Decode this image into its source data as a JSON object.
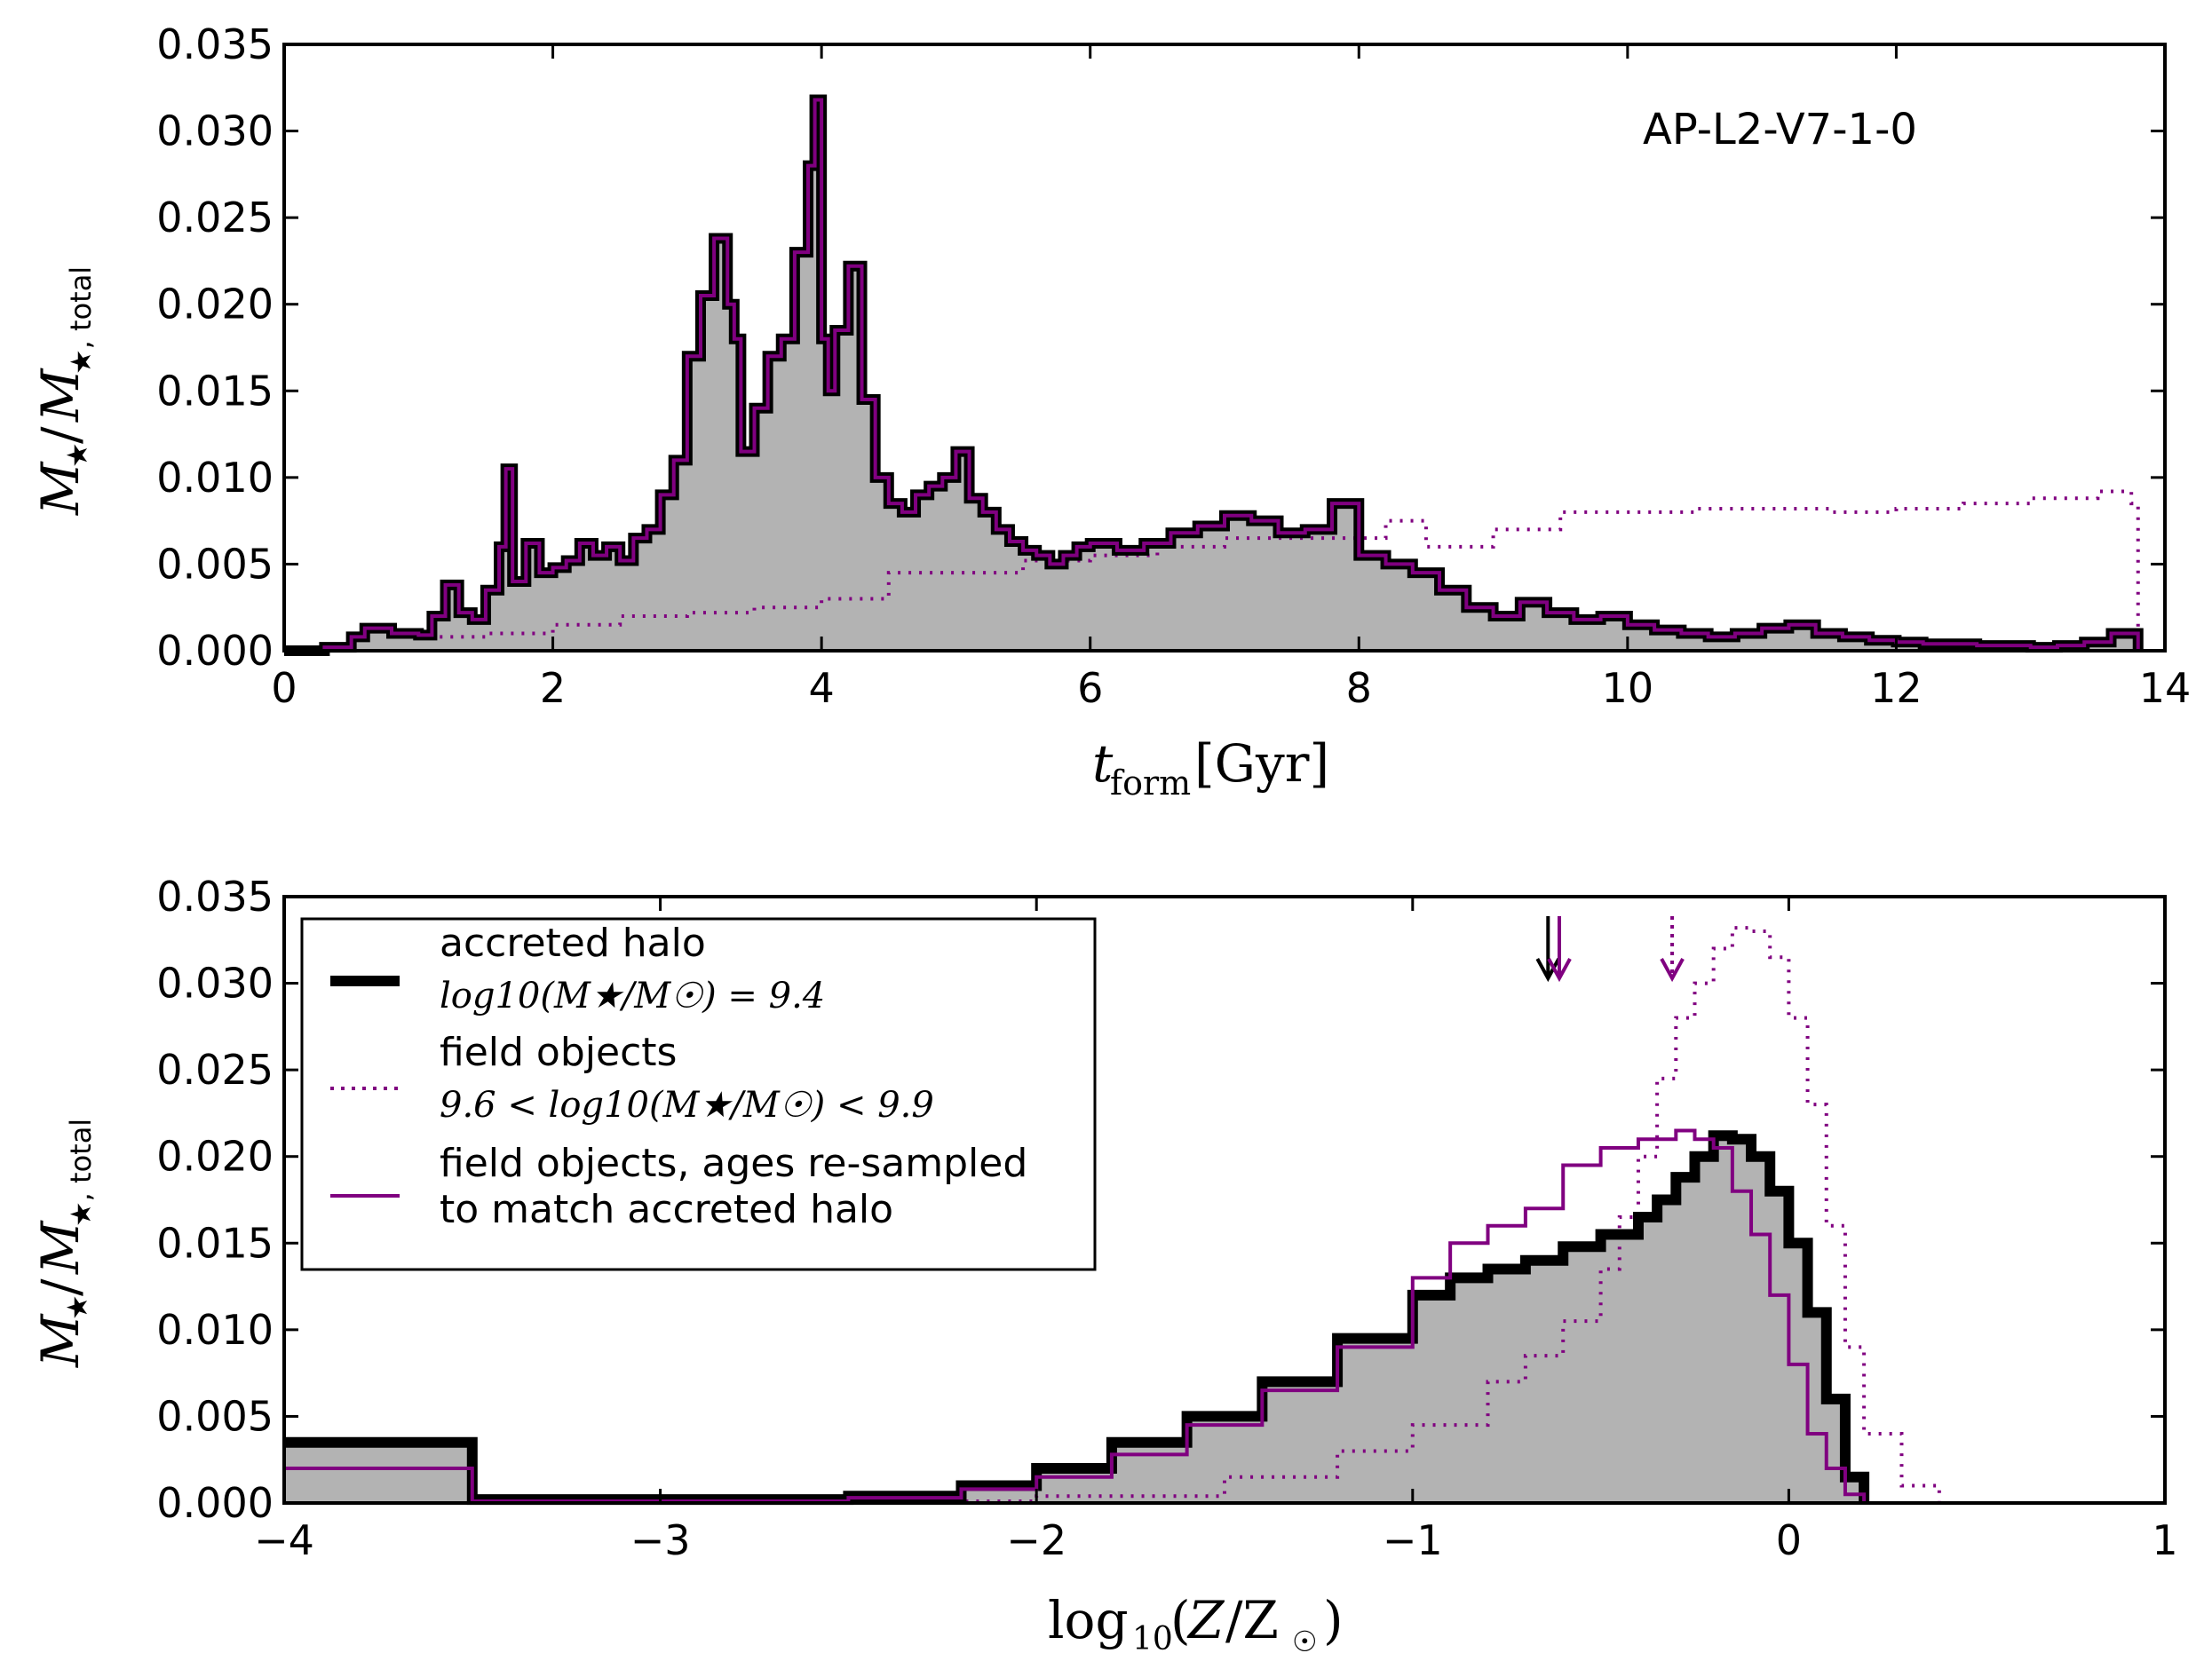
{
  "colors": {
    "accreted": "#000000",
    "field": "#800080",
    "fill": "#b3b3b3"
  },
  "chart_data": [
    {
      "type": "histogram",
      "panel": "top",
      "annotation": "AP-L2-V7-1-0",
      "xlabel": "t_form [Gyr]",
      "ylabel": "M★/M★,total",
      "xlim": [
        0,
        14
      ],
      "ylim": [
        0,
        0.035
      ],
      "xticks": [
        0,
        2,
        4,
        6,
        8,
        10,
        12,
        14
      ],
      "yticks": [
        0.0,
        0.005,
        0.01,
        0.015,
        0.02,
        0.025,
        0.03,
        0.035
      ],
      "ytick_labels": [
        "0.000",
        "0.005",
        "0.010",
        "0.015",
        "0.020",
        "0.025",
        "0.030",
        "0.035"
      ],
      "accreted_halo": {
        "x": [
          0.0,
          0.3,
          0.5,
          0.6,
          0.8,
          1.0,
          1.1,
          1.2,
          1.3,
          1.4,
          1.5,
          1.6,
          1.65,
          1.7,
          1.8,
          1.9,
          2.0,
          2.1,
          2.2,
          2.3,
          2.4,
          2.5,
          2.6,
          2.7,
          2.8,
          2.9,
          3.0,
          3.1,
          3.2,
          3.3,
          3.35,
          3.4,
          3.5,
          3.6,
          3.7,
          3.8,
          3.9,
          3.95,
          4.0,
          4.05,
          4.1,
          4.2,
          4.3,
          4.4,
          4.5,
          4.6,
          4.7,
          4.8,
          4.9,
          5.0,
          5.1,
          5.2,
          5.3,
          5.4,
          5.5,
          5.6,
          5.7,
          5.8,
          5.9,
          6.0,
          6.2,
          6.4,
          6.6,
          6.8,
          7.0,
          7.2,
          7.4,
          7.6,
          7.8,
          8.0,
          8.2,
          8.4,
          8.6,
          8.8,
          9.0,
          9.2,
          9.4,
          9.6,
          9.8,
          10.0,
          10.2,
          10.4,
          10.6,
          10.8,
          11.0,
          11.2,
          11.4,
          11.6,
          11.8,
          12.0,
          12.2,
          12.4,
          12.6,
          12.8,
          13.0,
          13.2,
          13.4,
          13.6,
          13.8
        ],
        "y": [
          0.0,
          0.0002,
          0.0008,
          0.0013,
          0.001,
          0.0009,
          0.002,
          0.0038,
          0.0022,
          0.0018,
          0.0035,
          0.006,
          0.0105,
          0.004,
          0.0062,
          0.0045,
          0.0048,
          0.0052,
          0.0062,
          0.0055,
          0.006,
          0.0052,
          0.0065,
          0.007,
          0.009,
          0.011,
          0.017,
          0.0205,
          0.0238,
          0.02,
          0.018,
          0.0115,
          0.014,
          0.017,
          0.018,
          0.023,
          0.028,
          0.0318,
          0.018,
          0.015,
          0.0185,
          0.0222,
          0.0145,
          0.01,
          0.0085,
          0.008,
          0.009,
          0.0095,
          0.01,
          0.0115,
          0.0088,
          0.008,
          0.007,
          0.0063,
          0.0058,
          0.0055,
          0.005,
          0.0055,
          0.006,
          0.0062,
          0.0058,
          0.0062,
          0.0068,
          0.0072,
          0.0078,
          0.0075,
          0.0068,
          0.007,
          0.0085,
          0.0055,
          0.005,
          0.0045,
          0.0035,
          0.0025,
          0.002,
          0.0028,
          0.0022,
          0.0018,
          0.002,
          0.0015,
          0.0012,
          0.001,
          0.0008,
          0.001,
          0.0013,
          0.0015,
          0.001,
          0.0008,
          0.0006,
          0.0005,
          0.0004,
          0.0004,
          0.0003,
          0.0003,
          0.0002,
          0.0003,
          0.0005,
          0.001,
          0.0
        ]
      },
      "field_objects_dotted": {
        "x": [
          1.0,
          1.5,
          2.0,
          2.5,
          3.0,
          3.5,
          4.0,
          4.5,
          5.0,
          5.5,
          6.0,
          6.5,
          7.0,
          7.5,
          8.0,
          8.2,
          8.5,
          9.0,
          9.5,
          10.0,
          10.5,
          11.0,
          11.5,
          12.0,
          12.5,
          13.0,
          13.5,
          13.75,
          13.8
        ],
        "y": [
          0.0008,
          0.001,
          0.0015,
          0.002,
          0.0022,
          0.0025,
          0.003,
          0.0045,
          0.0045,
          0.0052,
          0.0055,
          0.006,
          0.0065,
          0.0065,
          0.0065,
          0.0075,
          0.006,
          0.007,
          0.008,
          0.008,
          0.0082,
          0.0082,
          0.008,
          0.0082,
          0.0085,
          0.0088,
          0.0092,
          0.0085,
          0.0
        ]
      }
    },
    {
      "type": "histogram",
      "panel": "bottom",
      "xlabel": "log10(Z/Z☉)",
      "ylabel": "M★/M★,total",
      "xlim": [
        -4,
        1
      ],
      "ylim": [
        0,
        0.035
      ],
      "xticks": [
        -4,
        -3,
        -2,
        -1,
        0,
        1
      ],
      "xtick_labels": [
        "−4",
        "−3",
        "−2",
        "−1",
        "0",
        "1"
      ],
      "yticks": [
        0.0,
        0.005,
        0.01,
        0.015,
        0.02,
        0.025,
        0.03,
        0.035
      ],
      "ytick_labels": [
        "0.000",
        "0.005",
        "0.010",
        "0.015",
        "0.020",
        "0.025",
        "0.030",
        "0.035"
      ],
      "accreted_halo": {
        "x": [
          -4.0,
          -3.5,
          -3.0,
          -2.5,
          -2.2,
          -2.0,
          -1.8,
          -1.6,
          -1.4,
          -1.2,
          -1.0,
          -0.9,
          -0.8,
          -0.7,
          -0.6,
          -0.5,
          -0.4,
          -0.35,
          -0.3,
          -0.25,
          -0.2,
          -0.15,
          -0.1,
          -0.05,
          0.0,
          0.05,
          0.1,
          0.15,
          0.2
        ],
        "y": [
          0.0035,
          0.0002,
          0.0002,
          0.0004,
          0.001,
          0.002,
          0.0035,
          0.005,
          0.007,
          0.0095,
          0.012,
          0.013,
          0.0135,
          0.014,
          0.0148,
          0.0155,
          0.0165,
          0.0175,
          0.0188,
          0.02,
          0.0212,
          0.021,
          0.02,
          0.018,
          0.015,
          0.011,
          0.006,
          0.0015,
          0.0
        ]
      },
      "field_objects_dotted": {
        "x": [
          -2.5,
          -2.0,
          -1.5,
          -1.2,
          -1.0,
          -0.8,
          -0.7,
          -0.6,
          -0.5,
          -0.45,
          -0.4,
          -0.35,
          -0.3,
          -0.25,
          -0.2,
          -0.15,
          -0.1,
          -0.05,
          0.0,
          0.05,
          0.1,
          0.15,
          0.2,
          0.3,
          0.4
        ],
        "y": [
          0.0001,
          0.0004,
          0.0015,
          0.003,
          0.0045,
          0.007,
          0.0085,
          0.0105,
          0.0135,
          0.0165,
          0.02,
          0.0245,
          0.028,
          0.03,
          0.032,
          0.0332,
          0.033,
          0.0315,
          0.028,
          0.023,
          0.016,
          0.009,
          0.004,
          0.001,
          0.0
        ]
      },
      "field_objects_resampled": {
        "x": [
          -4.0,
          -3.5,
          -3.0,
          -2.5,
          -2.2,
          -2.0,
          -1.8,
          -1.6,
          -1.4,
          -1.2,
          -1.0,
          -0.9,
          -0.8,
          -0.7,
          -0.6,
          -0.5,
          -0.4,
          -0.3,
          -0.25,
          -0.2,
          -0.15,
          -0.1,
          -0.05,
          0.0,
          0.05,
          0.1,
          0.15,
          0.2
        ],
        "y": [
          0.002,
          0.0001,
          0.0001,
          0.0003,
          0.0008,
          0.0015,
          0.0028,
          0.0045,
          0.0065,
          0.009,
          0.013,
          0.015,
          0.016,
          0.017,
          0.0195,
          0.0205,
          0.021,
          0.0215,
          0.021,
          0.0205,
          0.018,
          0.0155,
          0.012,
          0.008,
          0.004,
          0.002,
          0.0005,
          0.0
        ]
      },
      "markers": [
        {
          "series": "accreted halo median",
          "x": -0.64,
          "color": "#000000"
        },
        {
          "series": "field objects re-sampled median",
          "x": -0.61,
          "color": "#800080"
        },
        {
          "series": "field objects median",
          "x": -0.31,
          "color": "#800080",
          "style": "dotted"
        }
      ],
      "legend": {
        "location": "upper left",
        "entries": [
          {
            "label": "accreted halo",
            "sublabel": "log10(M★/M☉) = 9.4",
            "style": "thick-solid",
            "color": "#000000"
          },
          {
            "label": "field objects",
            "sublabel": "9.6 < log10(M★/M☉) < 9.9",
            "style": "dotted",
            "color": "#800080"
          },
          {
            "label": "field objects, ages re-sampled",
            "sublabel": "to match accreted halo",
            "style": "thin-solid",
            "color": "#800080"
          }
        ]
      }
    }
  ]
}
